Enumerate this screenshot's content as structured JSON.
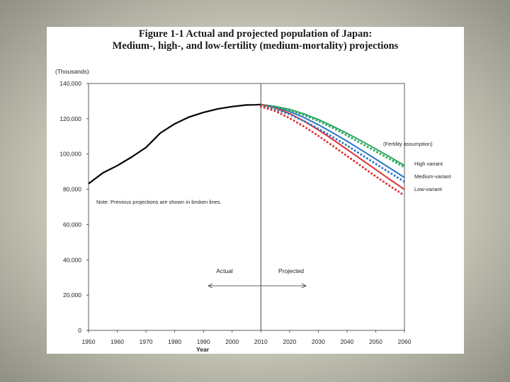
{
  "figure": {
    "title_line1": "Figure 1-1 Actual and projected population of Japan:",
    "title_line2": "Medium-, high-, and low-fertility (medium-mortality) projections"
  },
  "chart_data": {
    "type": "line",
    "title": "Figure 1-1 Actual and projected population of Japan: Medium-, high-, and low-fertility (medium-mortality) projections",
    "ylabel": "(Thousands)",
    "xlabel": "Year",
    "xlim": [
      1950,
      2060
    ],
    "ylim": [
      0,
      140000
    ],
    "x_ticks": [
      "1950",
      "1960",
      "1970",
      "1980",
      "1990",
      "2000",
      "2010",
      "2020",
      "2030",
      "2040",
      "2050",
      "2060"
    ],
    "y_ticks": [
      "0",
      "20,000",
      "40,000",
      "60,000",
      "80,000",
      "100,000",
      "120,000",
      "140,000"
    ],
    "divider_year": 2010,
    "actual_label": "Actual",
    "projected_label": "Projected",
    "note": "Note: Previous projections are shown in broken lines.",
    "legend_title": "(Fertility assumption)",
    "colors": {
      "actual": "#000000",
      "high": "#2ea860",
      "medium": "#2878c8",
      "low": "#e03030"
    },
    "series": [
      {
        "name": "Actual",
        "key": "actual",
        "x": [
          1950,
          1955,
          1960,
          1965,
          1970,
          1972,
          1975,
          1980,
          1985,
          1990,
          1995,
          2000,
          2005,
          2008,
          2010
        ],
        "y": [
          83200,
          89300,
          93400,
          98300,
          103700,
          107000,
          111900,
          117100,
          121000,
          123600,
          125600,
          126900,
          127800,
          127900,
          128100
        ]
      },
      {
        "name": "High variant",
        "key": "high",
        "x": [
          2010,
          2015,
          2020,
          2025,
          2030,
          2035,
          2040,
          2045,
          2050,
          2055,
          2060
        ],
        "y": [
          128100,
          127000,
          125300,
          122800,
          119600,
          115800,
          111700,
          107400,
          102900,
          98300,
          93500
        ]
      },
      {
        "name": "Medium-variant",
        "key": "medium",
        "x": [
          2010,
          2015,
          2020,
          2025,
          2030,
          2035,
          2040,
          2045,
          2050,
          2055,
          2060
        ],
        "y": [
          128100,
          126600,
          124100,
          120700,
          116600,
          112100,
          107300,
          102200,
          97100,
          91900,
          86700
        ]
      },
      {
        "name": "Low-variant",
        "key": "low",
        "x": [
          2010,
          2015,
          2020,
          2025,
          2030,
          2035,
          2040,
          2045,
          2050,
          2055,
          2060
        ],
        "y": [
          128100,
          126200,
          123000,
          118700,
          113700,
          108300,
          102600,
          96900,
          91200,
          85500,
          79900
        ]
      },
      {
        "name": "High variant (previous)",
        "key": "high_prev",
        "dashed": true,
        "x": [
          2010,
          2015,
          2020,
          2025,
          2030,
          2035,
          2040,
          2045,
          2050,
          2055,
          2060
        ],
        "y": [
          127500,
          126500,
          124700,
          122100,
          118700,
          114800,
          110500,
          106000,
          101500,
          97000,
          92500
        ]
      },
      {
        "name": "Medium-variant (previous)",
        "key": "medium_prev",
        "dashed": true,
        "x": [
          2010,
          2015,
          2020,
          2025,
          2030,
          2035,
          2040,
          2045,
          2050,
          2055,
          2060
        ],
        "y": [
          127200,
          125400,
          122500,
          118700,
          114400,
          109700,
          104800,
          99600,
          94400,
          89300,
          84300
        ]
      },
      {
        "name": "Low-variant (previous)",
        "key": "low_prev",
        "dashed": true,
        "x": [
          2010,
          2015,
          2020,
          2025,
          2030,
          2035,
          2040,
          2045,
          2050,
          2055,
          2060
        ],
        "y": [
          126900,
          124400,
          120400,
          115600,
          110300,
          104700,
          98900,
          93100,
          87300,
          81800,
          76500
        ]
      }
    ],
    "legend": [
      {
        "label": "High variant",
        "key": "high",
        "y": 93500
      },
      {
        "label": "Medium-variant",
        "key": "medium",
        "y": 86700
      },
      {
        "label": "Low-variant",
        "key": "low",
        "y": 79900
      }
    ]
  }
}
